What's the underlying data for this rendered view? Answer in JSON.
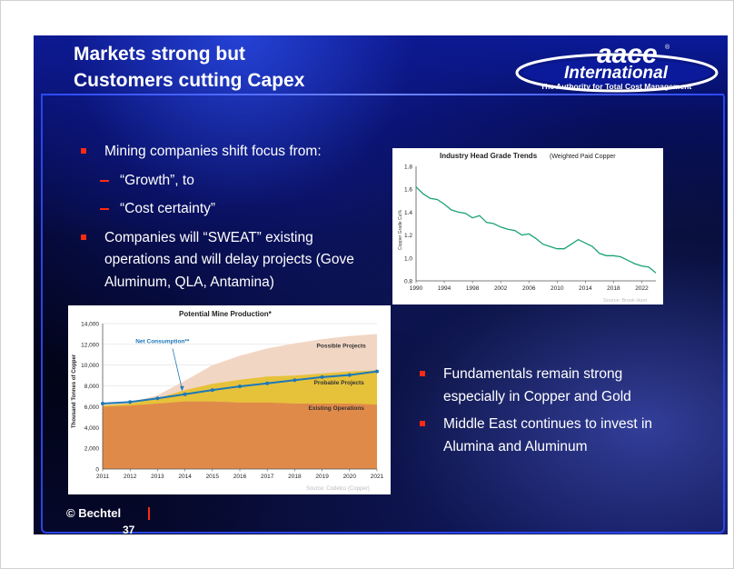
{
  "title": {
    "line1": "Markets strong but",
    "line2": "Customers cutting Capex"
  },
  "logo": {
    "name": "aace",
    "sub": "International",
    "registered": "®",
    "tagline": "The Authority for Total Cost Management",
    "tm": "™"
  },
  "bullets_left": [
    {
      "text": "Mining companies shift focus from:",
      "level": 1
    },
    {
      "text": "“Growth”, to",
      "level": 2
    },
    {
      "text": "“Cost certainty”",
      "level": 2
    },
    {
      "text": "Companies will “SWEAT” existing operations and will delay projects (Gove Aluminum, QLA, Antamina)",
      "level": 1
    }
  ],
  "bullets_right": [
    {
      "text": "Fundamentals remain strong especially in Copper and Gold",
      "level": 1
    },
    {
      "text": "Middle East continues to invest in Alumina and Aluminum",
      "level": 1
    }
  ],
  "footer": {
    "copyright": "© Bechtel",
    "page": "37"
  },
  "colors": {
    "accent_red": "#ff2a12",
    "frame_blue": "#2a45e8",
    "line_green": "#1aa178",
    "series_blue": "#1e78b8"
  },
  "chart_data": [
    {
      "type": "line",
      "title": "Industry Head Grade Trends",
      "subtitle": "(Weighted Paid Copper",
      "ylabel": "Copper Grade Cu%",
      "source": "Source: Brook Hunt",
      "x_ticks": [
        "1990",
        "1994",
        "1998",
        "2002",
        "2006",
        "2010",
        "2014",
        "2018",
        "2022"
      ],
      "y_ticks": [
        "1.8",
        "1.6",
        "1.4",
        "1.2",
        "1.0",
        "0.8"
      ],
      "xlim": [
        1990,
        2024
      ],
      "ylim": [
        0.8,
        1.8
      ],
      "series": [
        {
          "x": [
            1990,
            1991,
            1992,
            1993,
            1994,
            1995,
            1996,
            1997,
            1998,
            1999,
            2000,
            2001,
            2002,
            2003,
            2004,
            2005,
            2006,
            2007,
            2008,
            2009,
            2010,
            2011,
            2012,
            2013,
            2014,
            2015,
            2016,
            2017,
            2018,
            2019,
            2020,
            2021,
            2022,
            2023,
            2024
          ],
          "values": [
            1.62,
            1.56,
            1.52,
            1.51,
            1.47,
            1.42,
            1.4,
            1.39,
            1.35,
            1.37,
            1.31,
            1.3,
            1.27,
            1.25,
            1.24,
            1.2,
            1.21,
            1.17,
            1.12,
            1.1,
            1.08,
            1.08,
            1.12,
            1.16,
            1.13,
            1.1,
            1.04,
            1.02,
            1.02,
            1.01,
            0.98,
            0.95,
            0.93,
            0.92,
            0.87
          ]
        }
      ]
    },
    {
      "type": "area",
      "title": "Potential Mine Production*",
      "ylabel": "Thousand Tonnes of Copper",
      "source": "Source: Codelco (Copper)",
      "categories": [
        "2011",
        "2012",
        "2013",
        "2014",
        "2015",
        "2016",
        "2017",
        "2018",
        "2019",
        "2020",
        "2021"
      ],
      "y_ticks": [
        "14,000",
        "12,000",
        "10,000",
        "8,000",
        "6,000",
        "4,000",
        "2,000",
        "0"
      ],
      "ylim": [
        0,
        14000
      ],
      "series": [
        {
          "name": "Existing Operations",
          "values": [
            6000,
            6100,
            6300,
            6500,
            6500,
            6400,
            6400,
            6300,
            6300,
            6300,
            6200
          ]
        },
        {
          "name": "Probable Projects",
          "values": [
            6100,
            6300,
            6800,
            7600,
            8200,
            8600,
            8900,
            9000,
            9200,
            9400,
            9500
          ]
        },
        {
          "name": "Possible Projects",
          "values": [
            6200,
            6400,
            7100,
            8500,
            10000,
            10900,
            11600,
            12100,
            12500,
            12800,
            13000
          ]
        },
        {
          "name": "Net Consumption**",
          "values": [
            6300,
            6450,
            6800,
            7200,
            7600,
            7950,
            8250,
            8550,
            8850,
            9050,
            9400
          ]
        }
      ]
    }
  ]
}
